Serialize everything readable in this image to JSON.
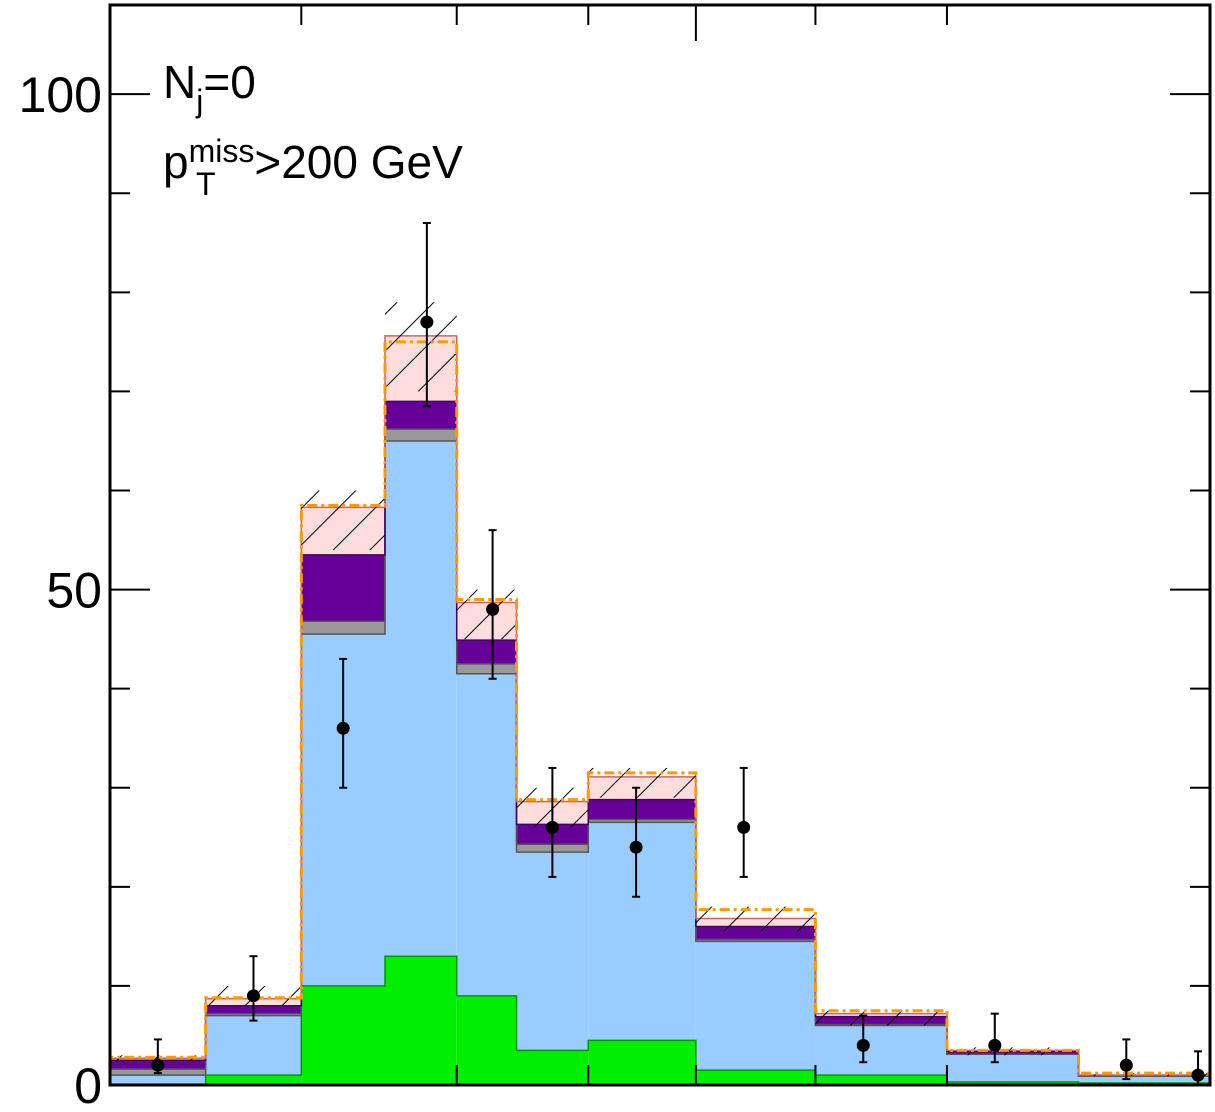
{
  "chart_data": {
    "type": "bar",
    "subtype": "stacked-step-histogram",
    "annotations": {
      "line1_main": "N",
      "line1_sub": "j",
      "line1_rest": "=0",
      "line2_main": "p",
      "line2_sub": "T",
      "line2_sup": "miss",
      "line2_rest": ">200 GeV"
    },
    "ylim": [
      0,
      109
    ],
    "y_tick_labels": [
      "0",
      "50",
      "100"
    ],
    "y_minor_step": 10,
    "grid": false,
    "legend": "none",
    "bin_edges": [
      0,
      8,
      16,
      23,
      29,
      34,
      40,
      49,
      59,
      70,
      81,
      92
    ],
    "x_top_ticks": [
      16,
      29,
      40,
      49,
      59,
      70
    ],
    "x_bottom_ticks": [
      29,
      40,
      49,
      59,
      70
    ],
    "series": [
      {
        "color": "#00ee00",
        "values": [
          0.0,
          1.0,
          10.0,
          13.0,
          9.0,
          3.5,
          4.5,
          1.5,
          1.0,
          0.3,
          0.2,
          0.1
        ]
      },
      {
        "color": "#99ccff",
        "values": [
          1.0,
          6.0,
          35.5,
          52.0,
          32.5,
          20.0,
          22.0,
          13.0,
          5.0,
          2.8,
          0.7,
          0.2
        ]
      },
      {
        "color": "#999999",
        "values": [
          0.6,
          0.2,
          1.3,
          1.2,
          1.0,
          0.8,
          0.3,
          0.2,
          0.1,
          0.0,
          0.0,
          0.0
        ]
      },
      {
        "color": "#660099",
        "values": [
          0.9,
          0.8,
          6.7,
          2.8,
          2.4,
          2.0,
          2.0,
          1.3,
          0.8,
          0.3,
          0.1,
          0.1
        ]
      },
      {
        "color": "#ffdddd",
        "values": [
          0.2,
          0.7,
          4.8,
          6.6,
          3.8,
          2.3,
          2.3,
          0.8,
          0.3,
          0.1,
          0.0,
          0.0
        ]
      }
    ],
    "pink_line_color": "#cc6666",
    "orange_values": [
      2.8,
      8.8,
      58.5,
      75.0,
      49.0,
      28.8,
      31.5,
      17.7,
      7.5,
      3.5,
      1.2,
      0.6
    ],
    "orange_color": "#ff9900",
    "hatch_lo": [
      2.4,
      8.0,
      54.0,
      70.0,
      45.0,
      26.0,
      29.0,
      15.5,
      6.0,
      3.0,
      0.9,
      0.3
    ],
    "hatch_hi": [
      3.0,
      10.0,
      60.0,
      79.0,
      50.0,
      30.0,
      32.0,
      18.0,
      7.5,
      3.8,
      1.2,
      0.6
    ],
    "data_points": [
      {
        "x": 4,
        "y": 2.0,
        "yerr_lo": 1.2,
        "yerr_hi": 4.6
      },
      {
        "x": 12,
        "y": 9.0,
        "yerr_lo": 6.5,
        "yerr_hi": 13.0
      },
      {
        "x": 19.5,
        "y": 36.0,
        "yerr_lo": 30.0,
        "yerr_hi": 43.0
      },
      {
        "x": 26.5,
        "y": 77.0,
        "yerr_lo": 68.5,
        "yerr_hi": 87.0
      },
      {
        "x": 32,
        "y": 48.0,
        "yerr_lo": 41.0,
        "yerr_hi": 56.0
      },
      {
        "x": 37,
        "y": 26.0,
        "yerr_lo": 21.0,
        "yerr_hi": 32.0
      },
      {
        "x": 44,
        "y": 24.0,
        "yerr_lo": 19.0,
        "yerr_hi": 30.0
      },
      {
        "x": 53,
        "y": 26.0,
        "yerr_lo": 21.0,
        "yerr_hi": 32.0
      },
      {
        "x": 63,
        "y": 4.0,
        "yerr_lo": 2.3,
        "yerr_hi": 7.0
      },
      {
        "x": 74,
        "y": 4.0,
        "yerr_lo": 2.3,
        "yerr_hi": 7.2
      },
      {
        "x": 85,
        "y": 2.0,
        "yerr_lo": 0.6,
        "yerr_hi": 4.6
      },
      {
        "x": 91,
        "y": 1.0,
        "yerr_lo": 0.0,
        "yerr_hi": 3.4
      }
    ]
  }
}
